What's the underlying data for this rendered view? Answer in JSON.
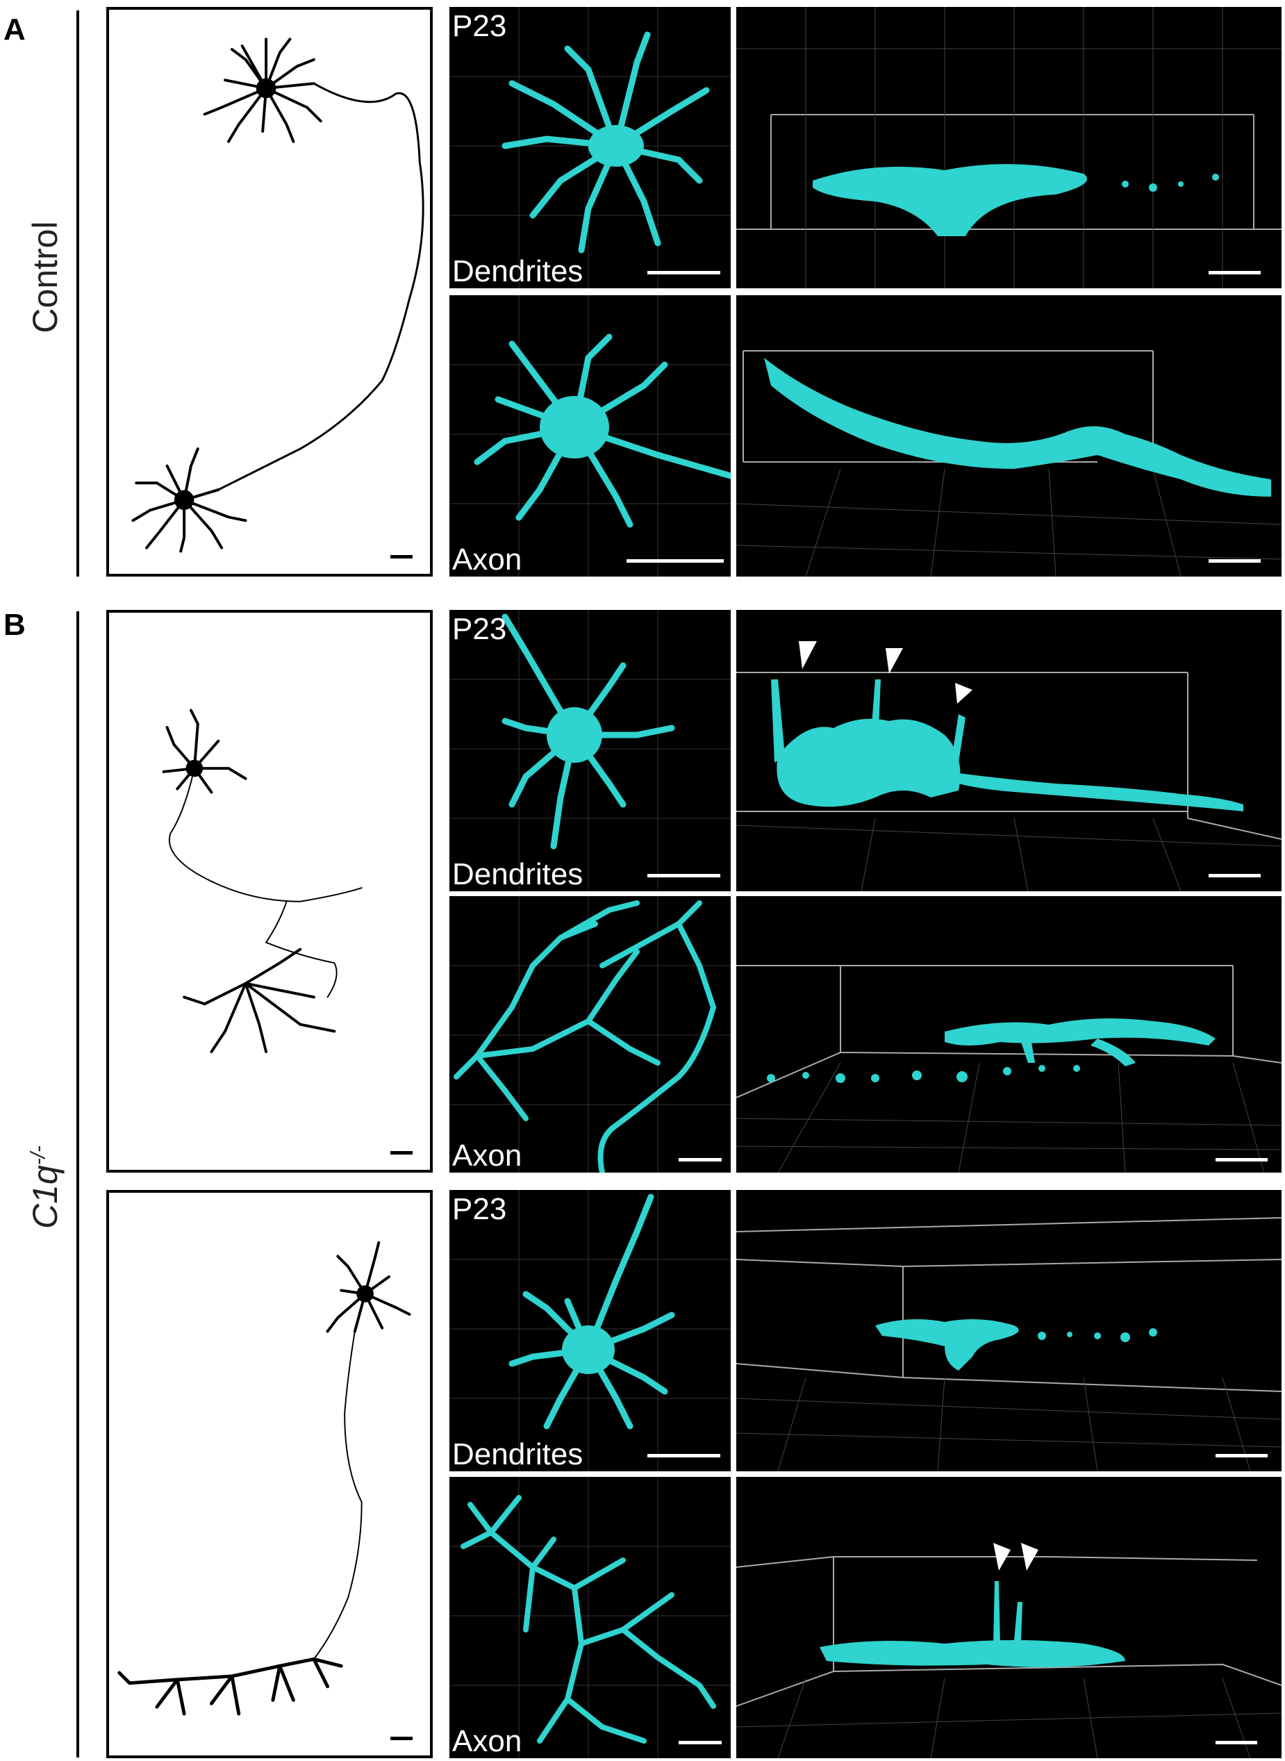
{
  "panels": {
    "A": {
      "letter": "A",
      "row_label": "Control"
    },
    "B": {
      "letter": "B",
      "row_label_main": "C1q",
      "row_label_sup": "-/-"
    }
  },
  "labels": {
    "age": "P23",
    "dendrites": "Dendrites",
    "axon": "Axon"
  },
  "colors": {
    "cell": "#2fd3cf",
    "background": "#000000",
    "trace": "#000000"
  }
}
